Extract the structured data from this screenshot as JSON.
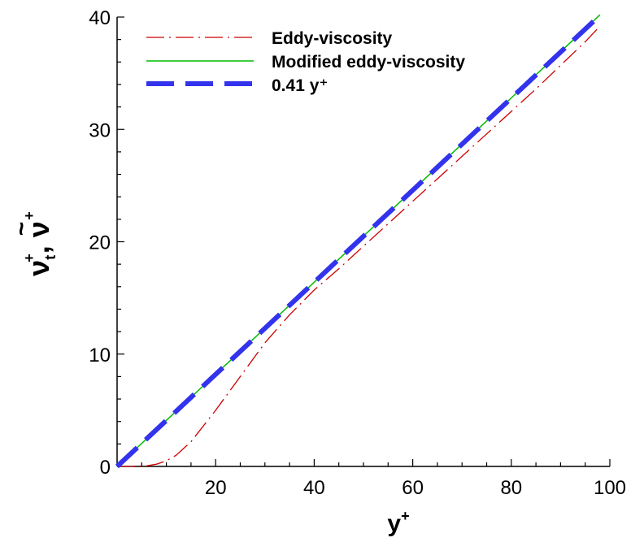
{
  "chart_data": {
    "type": "line",
    "title": "",
    "xlabel": {
      "base": "y",
      "sup": "+"
    },
    "ylabel": {
      "main": "ν",
      "sub": "t",
      "sup": "+",
      "sep": ", ",
      "tilde": "~",
      "second": "ν",
      "second_sup": "+"
    },
    "xlim": [
      0,
      100
    ],
    "ylim": [
      0,
      40
    ],
    "x_ticks": [
      20,
      40,
      60,
      80,
      100
    ],
    "y_ticks": [
      0,
      10,
      20,
      30,
      40
    ],
    "x_tick_labels": [
      "20",
      "40",
      "60",
      "80",
      "100"
    ],
    "y_tick_labels": [
      "0",
      "10",
      "20",
      "30",
      "40"
    ],
    "grid": false,
    "legend_position": "top-left",
    "series": [
      {
        "name": "Eddy-viscosity",
        "color": "#cc0000",
        "style": "dash-dot",
        "x": [
          0,
          3,
          6,
          8,
          10,
          12,
          15,
          20,
          25,
          30,
          35,
          40,
          45,
          50,
          55,
          60,
          65,
          70,
          75,
          80,
          85,
          90,
          95,
          98
        ],
        "y": [
          0,
          0.01,
          0.05,
          0.2,
          0.5,
          1.0,
          2.2,
          5.0,
          8.0,
          11.0,
          13.5,
          15.7,
          17.6,
          19.6,
          21.6,
          23.6,
          25.6,
          27.6,
          29.6,
          31.6,
          33.6,
          35.7,
          37.8,
          39.2
        ]
      },
      {
        "name": "Modified eddy-viscosity",
        "color": "#00bb00",
        "style": "solid",
        "x": [
          0,
          10,
          20,
          40,
          60,
          80,
          98
        ],
        "y": [
          0,
          4.1,
          8.2,
          16.4,
          24.6,
          32.8,
          40.2
        ]
      },
      {
        "name": "0.41 y⁺",
        "color": "#3333ee",
        "style": "long-dash",
        "x": [
          0,
          97.6
        ],
        "y": [
          0,
          40
        ]
      }
    ]
  }
}
